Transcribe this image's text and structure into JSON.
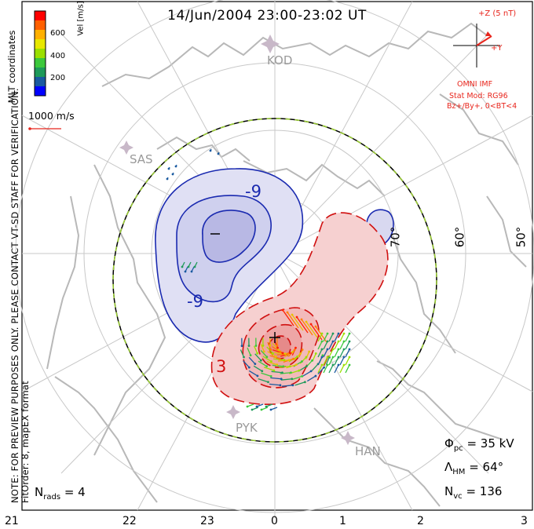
{
  "title": "14/Jun/2004 23:00-23:02 UT",
  "note": {
    "line1": "NOTE: FOR PREVIEW PURPOSES ONLY. PLEASE CONTACT VT-SD STAFF FOR VERIFICATION.",
    "line2": "FitOrder: 8, mapEX format"
  },
  "coordinates_label": "MLT coordinates",
  "colorbar": {
    "label": "Vel [m/s]",
    "ticks": [
      "600",
      "400",
      "200"
    ],
    "colors": [
      "#ff0000",
      "#ff6000",
      "#ffb000",
      "#e8e800",
      "#9be000",
      "#3cc83c",
      "#1e9a5a",
      "#1a5aa0",
      "#0000ff"
    ]
  },
  "scale_vector": "1000 m/s",
  "imf": {
    "bz_label": "+Z (5 nT)",
    "by_label": "+Y",
    "source": "OMNI IMF",
    "stat_mod": "Stat Mod: RG96",
    "condition": "Bz+/By+, 0<BT<4"
  },
  "stations": [
    "KOD",
    "SAS",
    "PYK",
    "HAN"
  ],
  "contours": {
    "negative_label": "-9",
    "negative_min_marker": "–",
    "positive_label": "3",
    "positive_max_marker": "+"
  },
  "latitudes": [
    "70°",
    "60°",
    "50°"
  ],
  "stats": {
    "phi_pc": {
      "symbol": "Φ",
      "sub": "pc",
      "value": "= 35 kV"
    },
    "lambda_hm": {
      "symbol": "Λ",
      "sub": "HM",
      "value": "= 64°"
    },
    "n_vc": {
      "symbol": "N",
      "sub": "vc",
      "value": "= 136"
    },
    "n_rads": {
      "symbol": "N",
      "sub": "rads",
      "value": "= 4"
    }
  },
  "mlt_ticks": [
    "21",
    "22",
    "23",
    "0",
    "1",
    "2",
    "3"
  ],
  "colors": {
    "negative": "#1020a0",
    "negative_fill": "#c8c8ec",
    "positive": "#d01010",
    "positive_fill": "#f4c4c4",
    "grid": "#c8c8c8",
    "accent": "#e8251c"
  }
}
